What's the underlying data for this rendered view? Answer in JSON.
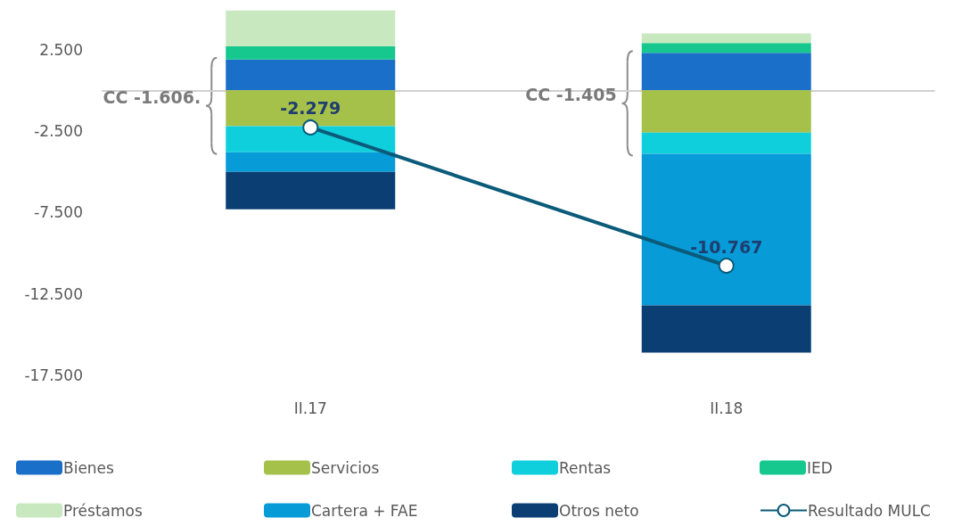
{
  "chart_data": {
    "type": "bar",
    "stacked": true,
    "categories": [
      "II.17",
      "II.18"
    ],
    "series": [
      {
        "name": "Bienes",
        "color": "#1a6fc9",
        "values": [
          1900,
          2300
        ]
      },
      {
        "name": "Servicios",
        "color": "#a5c14a",
        "values": [
          -2200,
          -2600
        ]
      },
      {
        "name": "Rentas",
        "color": "#10cfdc",
        "values": [
          -1600,
          -1300
        ]
      },
      {
        "name": "IED",
        "color": "#16c88e",
        "values": [
          800,
          600
        ]
      },
      {
        "name": "Préstamos",
        "color": "#c8e8c0",
        "values": [
          2200,
          600
        ]
      },
      {
        "name": "Cartera + FAE",
        "color": "#079bd8",
        "values": [
          -1200,
          -9300
        ]
      },
      {
        "name": "Otros neto",
        "color": "#0b3f73",
        "values": [
          -2300,
          -2900
        ]
      },
      {
        "name": "Resultado MULC",
        "type": "line",
        "color": "#0a5b7a",
        "values": [
          -2279,
          -10767
        ],
        "value_labels": [
          "-2.279",
          "-10.767"
        ],
        "marker": "circle"
      }
    ],
    "ylim": [
      -17500,
      5000
    ],
    "yticks": [
      {
        "value": 2500,
        "label": "2.500"
      },
      {
        "value": -2500,
        "label": "-2.500"
      },
      {
        "value": -7500,
        "label": "-7.500"
      },
      {
        "value": -12500,
        "label": "-12.500"
      },
      {
        "value": -17500,
        "label": "-17.500"
      }
    ],
    "grid": false,
    "legend": "bottom",
    "annotations": [
      "CC -1.606.",
      "CC -1.405"
    ]
  }
}
